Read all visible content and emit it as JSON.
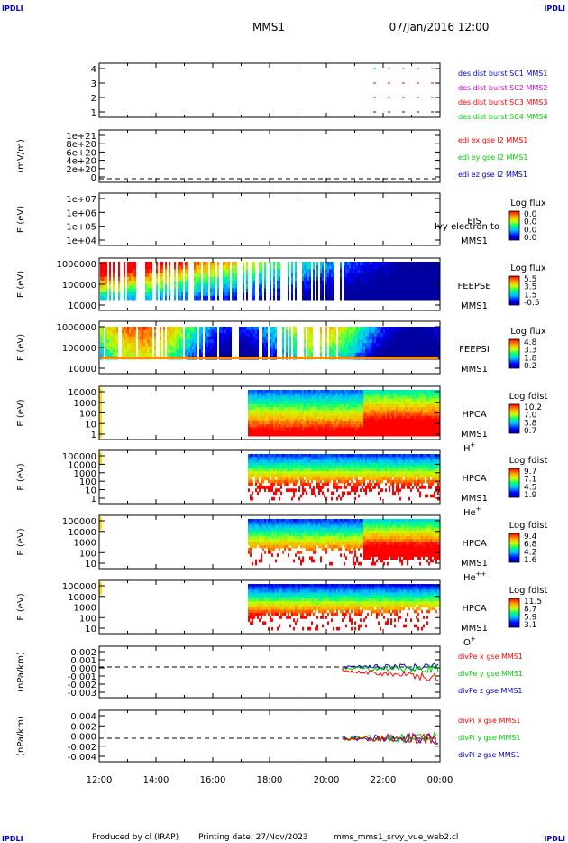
{
  "header": {
    "corner_label": "IPDLI",
    "title": "MMS1",
    "datetime": "07/Jan/2016 12:00"
  },
  "footer": {
    "credit": "Produced by cl (IRAP)",
    "printing": "Printing date: 27/Nov/2023",
    "file": "mms_mms1_srvy_vue_web2.cl"
  },
  "colors": {
    "ion_red": "#ff0000",
    "green": "#00cc00",
    "blue": "#0000cc",
    "magenta": "#cc00cc"
  },
  "chart_data": {
    "type": "stacked-timeseries",
    "time_ticks": [
      "12:00",
      "14:00",
      "16:00",
      "18:00",
      "20:00",
      "22:00",
      "00:00"
    ],
    "panels": [
      {
        "id": "p1",
        "type": "availability",
        "yticks": [
          "4",
          "3",
          "2",
          "1"
        ],
        "ylabel": "",
        "legend": [
          {
            "text": "des dist burst SC1 MMS1",
            "color": "#0000cc"
          },
          {
            "text": "des dist burst SC2 MMS2",
            "color": "#cc00cc"
          },
          {
            "text": "des dist burst SC3 MMS3",
            "color": "#ff0000"
          },
          {
            "text": "des dist burst SC4 MMS4",
            "color": "#00cc00"
          }
        ]
      },
      {
        "id": "p2",
        "type": "line",
        "yticks": [
          "1e+21",
          "8e+20",
          "6e+20",
          "4e+20",
          "2e+20",
          "0"
        ],
        "ylabel": "(mV/m)",
        "legend": [
          {
            "text": "edi ex gse l2 MMS1",
            "color": "#ff0000"
          },
          {
            "text": "edi ey gse l2 MMS1",
            "color": "#00cc00"
          },
          {
            "text": "edi ez gse l2 MMS1",
            "color": "#0000cc"
          }
        ]
      },
      {
        "id": "p3",
        "type": "spectrogram",
        "yticks": [
          "1e+07",
          "1e+06",
          "1e+05",
          "1e+04"
        ],
        "ylabel": "E (eV)",
        "name": "EIS",
        "sc": "MMS1",
        "overlay": "Ivy electron to",
        "cb_title": "Log flux",
        "cb_ticks": [
          "0.0",
          "0.0",
          "0.0",
          "0.0"
        ]
      },
      {
        "id": "p4",
        "type": "spectrogram",
        "yticks": [
          "1000000",
          "100000",
          "10000"
        ],
        "ylabel": "E (eV)",
        "name": "FEEPSE",
        "sc": "MMS1",
        "cb_title": "Log flux",
        "cb_ticks": [
          "5.5",
          "3.5",
          "1.5",
          "-0.5"
        ]
      },
      {
        "id": "p5",
        "type": "spectrogram",
        "yticks": [
          "1000000",
          "100000",
          "10000"
        ],
        "ylabel": "E (eV)",
        "name": "FEEPSI",
        "sc": "MMS1",
        "cb_title": "Log flux",
        "cb_ticks": [
          "4.8",
          "3.3",
          "1.8",
          "0.2"
        ]
      },
      {
        "id": "p6",
        "type": "spectrogram",
        "yticks": [
          "10000",
          "1000",
          "100",
          "10",
          "1"
        ],
        "ylabel": "E (eV)",
        "name": "HPCA",
        "sc": "MMS1",
        "species": "H",
        "charge": "+",
        "cb_title": "Log fdist",
        "cb_ticks": [
          "10.2",
          "7.0",
          "3.8",
          "0.7"
        ]
      },
      {
        "id": "p7",
        "type": "spectrogram",
        "yticks": [
          "100000",
          "10000",
          "1000",
          "100",
          "10",
          "1"
        ],
        "ylabel": "E (eV)",
        "name": "HPCA",
        "sc": "MMS1",
        "species": "He",
        "charge": "+",
        "cb_title": "Log fdist",
        "cb_ticks": [
          "9.7",
          "7.1",
          "4.5",
          "1.9"
        ]
      },
      {
        "id": "p8",
        "type": "spectrogram",
        "yticks": [
          "100000",
          "10000",
          "1000",
          "100",
          "10"
        ],
        "ylabel": "E (eV)",
        "name": "HPCA",
        "sc": "MMS1",
        "species": "He",
        "charge": "++",
        "cb_title": "Log fdist",
        "cb_ticks": [
          "9.4",
          "6.8",
          "4.2",
          "1.6"
        ]
      },
      {
        "id": "p9",
        "type": "spectrogram",
        "yticks": [
          "100000",
          "10000",
          "1000",
          "100",
          "10"
        ],
        "ylabel": "E (eV)",
        "name": "HPCA",
        "sc": "MMS1",
        "species": "O",
        "charge": "+",
        "cb_title": "Log fdist",
        "cb_ticks": [
          "11.5",
          "8.7",
          "5.9",
          "3.1"
        ]
      },
      {
        "id": "p10",
        "type": "line",
        "yticks": [
          "0.002",
          "0.001",
          "0.000",
          "-0.001",
          "-0.002",
          "-0.003"
        ],
        "ylabel": "(nPa/km)",
        "legend": [
          {
            "text": "divPe x gse MMS1",
            "color": "#ff0000"
          },
          {
            "text": "divPe y gse MMS1",
            "color": "#00cc00"
          },
          {
            "text": "divPe z gse MMS1",
            "color": "#0000cc"
          }
        ]
      },
      {
        "id": "p11",
        "type": "line",
        "yticks": [
          "0.004",
          "0.002",
          "0.000",
          "-0.002",
          "-0.004"
        ],
        "ylabel": "(nPa/km)",
        "legend": [
          {
            "text": "divPi x gse MMS1",
            "color": "#ff0000"
          },
          {
            "text": "divPi y gse MMS1",
            "color": "#00cc00"
          },
          {
            "text": "divPi z gse MMS1",
            "color": "#0000cc"
          }
        ]
      }
    ]
  }
}
